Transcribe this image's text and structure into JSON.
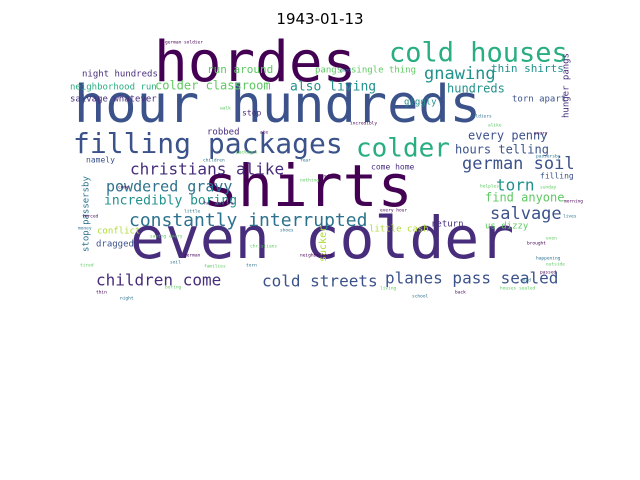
{
  "title": "1943-01-13",
  "palette": [
    "#440154",
    "#472d7b",
    "#3b528b",
    "#2c728e",
    "#21918c",
    "#28ae80",
    "#5ec962",
    "#addc30",
    "#fde725"
  ],
  "words": [
    {
      "text": "hordes",
      "color": "#440154",
      "vertical": false
    },
    {
      "text": "hour hundreds",
      "color": "#3b528b",
      "vertical": false
    },
    {
      "text": "shirts",
      "color": "#440154",
      "vertical": false
    },
    {
      "text": "even colder",
      "color": "#472d7b",
      "vertical": false
    },
    {
      "text": "cold houses",
      "color": "#28ae80",
      "vertical": false
    },
    {
      "text": "filling packages",
      "color": "#3b528b",
      "vertical": false
    },
    {
      "text": "colder",
      "color": "#28ae80",
      "vertical": false
    },
    {
      "text": "constantly interrupted",
      "color": "#2c728e",
      "vertical": false
    },
    {
      "text": "christians alike",
      "color": "#472d7b",
      "vertical": false
    },
    {
      "text": "powdered gravy",
      "color": "#2c728e",
      "vertical": false
    },
    {
      "text": "german soil",
      "color": "#3b528b",
      "vertical": false
    },
    {
      "text": "gnawing",
      "color": "#21918c",
      "vertical": false
    },
    {
      "text": "salvage",
      "color": "#3b528b",
      "vertical": false
    },
    {
      "text": "torn",
      "color": "#21918c",
      "vertical": false
    },
    {
      "text": "children come",
      "color": "#472d7b",
      "vertical": false
    },
    {
      "text": "cold streets",
      "color": "#3b528b",
      "vertical": false
    },
    {
      "text": "planes pass sealed",
      "color": "#3b528b",
      "vertical": false
    },
    {
      "text": "incredibly boring",
      "color": "#21918c",
      "vertical": false
    },
    {
      "text": "also living",
      "color": "#21918c",
      "vertical": false
    },
    {
      "text": "colder classroom",
      "color": "#5ec962",
      "vertical": false
    },
    {
      "text": "hundreds",
      "color": "#21918c",
      "vertical": false
    },
    {
      "text": "every penny",
      "color": "#3b528b",
      "vertical": false
    },
    {
      "text": "hours telling",
      "color": "#3b528b",
      "vertical": false
    },
    {
      "text": "find anyone",
      "color": "#5ec962",
      "vertical": false
    },
    {
      "text": "run around",
      "color": "#5ec962",
      "vertical": false
    },
    {
      "text": "thin shirts",
      "color": "#21918c",
      "vertical": false
    },
    {
      "text": "night hundreds",
      "color": "#472d7b",
      "vertical": false
    },
    {
      "text": "neighborhood run",
      "color": "#28ae80",
      "vertical": false
    },
    {
      "text": "salvage whatever",
      "color": "#472d7b",
      "vertical": false
    },
    {
      "text": "torn apart",
      "color": "#3b528b",
      "vertical": false
    },
    {
      "text": "pangs",
      "color": "#5ec962",
      "vertical": false
    },
    {
      "text": "single thing",
      "color": "#5ec962",
      "vertical": false
    },
    {
      "text": "giggly",
      "color": "#21918c",
      "vertical": false
    },
    {
      "text": "robbed",
      "color": "#472d7b",
      "vertical": false
    },
    {
      "text": "stop",
      "color": "#472d7b",
      "vertical": false
    },
    {
      "text": "namely",
      "color": "#3b528b",
      "vertical": false
    },
    {
      "text": "come home",
      "color": "#472d7b",
      "vertical": false
    },
    {
      "text": "return",
      "color": "#472d7b",
      "vertical": false
    },
    {
      "text": "little cash",
      "color": "#addc30",
      "vertical": false
    },
    {
      "text": "us dizzy",
      "color": "#5ec962",
      "vertical": false
    },
    {
      "text": "dragged",
      "color": "#3b528b",
      "vertical": false
    },
    {
      "text": "conflict",
      "color": "#addc30",
      "vertical": false
    },
    {
      "text": "filling",
      "color": "#3b528b",
      "vertical": false
    },
    {
      "text": "hunger pangs",
      "color": "#472d7b",
      "vertical": true
    },
    {
      "text": "stop passersby",
      "color": "#2c728e",
      "vertical": true
    },
    {
      "text": "sucker",
      "color": "#addc30",
      "vertical": true
    }
  ],
  "small_words": [
    "german soldier",
    "good",
    "helpless",
    "every hour",
    "shoes",
    "packages",
    "help others",
    "little",
    "walk",
    "ate",
    "fear",
    "nothing",
    "find",
    "soldiers",
    "alike",
    "every",
    "passersby",
    "sunday",
    "morning",
    "lives",
    "even",
    "brought",
    "happening",
    "outside",
    "passed",
    "cold",
    "houses sealed",
    "back",
    "school",
    "living",
    "neighborhood",
    "torn",
    "families",
    "german",
    "soil",
    "saving every",
    "forced",
    "money",
    "tired",
    "thin",
    "night",
    "boring",
    "come",
    "children",
    "christians",
    "incredibly"
  ]
}
